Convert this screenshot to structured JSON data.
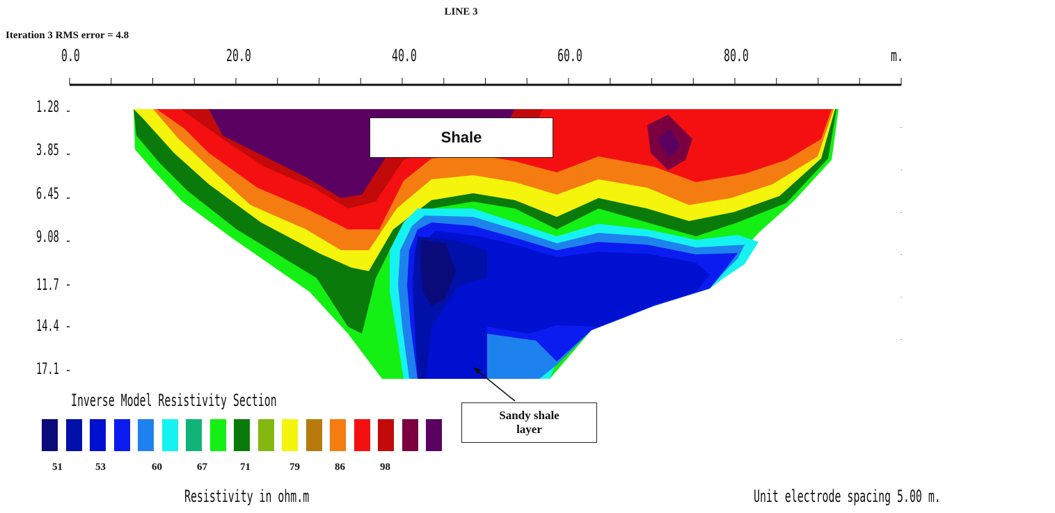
{
  "chart_data": {
    "type": "heatmap",
    "title": "LINE 3",
    "subtitle": "Iteration 3 RMS error = 4.8",
    "x_unit": "m.",
    "x_ticks": [
      "0.0",
      "20.0",
      "40.0",
      "60.0",
      "80.0"
    ],
    "xlim": [
      0,
      100
    ],
    "y_ticks": [
      "1.28",
      "3.85",
      "6.45",
      "9.08",
      "11.7",
      "14.4",
      "17.1"
    ],
    "legend": {
      "title": "Inverse Model Resistivity Section",
      "colors": [
        "#0a0a7a",
        "#0010a8",
        "#0010d0",
        "#0a1cf0",
        "#1e82ee",
        "#16f2f2",
        "#10b478",
        "#14f014",
        "#0a7a0a",
        "#82b810",
        "#f4f40c",
        "#b87a0c",
        "#f47c10",
        "#f41010",
        "#c20a0a",
        "#7a0040",
        "#5a0060"
      ],
      "labels": [
        "51",
        "53",
        "60",
        "67",
        "71",
        "79",
        "86",
        "98"
      ],
      "unit_label": "Resistivity in ohm.m"
    },
    "spacing_note": "Unit electrode spacing 5.00 m."
  },
  "annotations": {
    "shale": "Shale",
    "sandy_line1": "Sandy shale",
    "sandy_line2": "layer"
  }
}
